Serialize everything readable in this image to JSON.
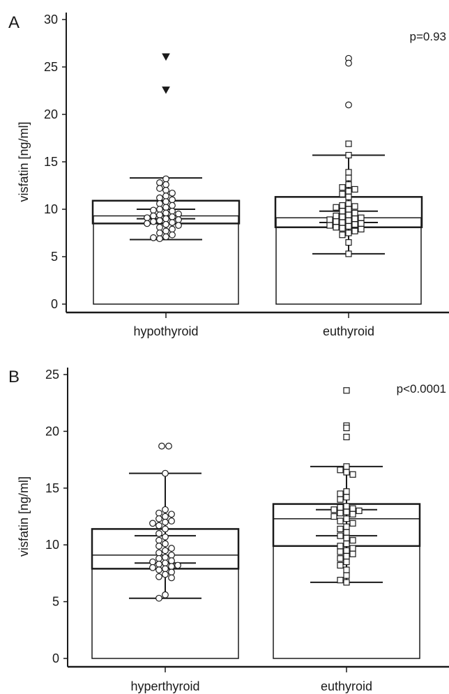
{
  "chart_data": [
    {
      "type": "bar",
      "panel_label": "A",
      "ylabel": "visfatin [ng/ml]",
      "ylim": [
        0,
        30
      ],
      "yticks": [
        "0",
        "5",
        "10",
        "15",
        "20",
        "25",
        "30"
      ],
      "categories": [
        "hypothyroid",
        "euthyroid"
      ],
      "annotation": "p=0.93",
      "bar_values": [
        9.3,
        9.1
      ],
      "box": [
        {
          "q1": 8.5,
          "q3": 10.9
        },
        {
          "q1": 8.1,
          "q3": 11.3
        }
      ],
      "inner_bars": [
        {
          "low": 9.0,
          "high": 10.0
        },
        {
          "low": 8.6,
          "high": 9.8
        }
      ],
      "whiskers": [
        {
          "low": 6.8,
          "high": 13.3
        },
        {
          "low": 5.3,
          "high": 15.7
        }
      ],
      "markers": [
        "circle",
        "square"
      ],
      "outliers": [
        {
          "marker": "down-triangle",
          "values": [
            26.1,
            22.6
          ]
        },
        {
          "marker": "circle",
          "values": [
            25.9,
            25.4,
            21.0
          ]
        }
      ],
      "points": [
        [
          13.2,
          12.8,
          12.6,
          12.2,
          12.0,
          11.7,
          11.4,
          11.2,
          11.0,
          10.8,
          10.6,
          10.4,
          10.2,
          10.0,
          9.9,
          9.8,
          9.6,
          9.5,
          9.4,
          9.3,
          9.2,
          9.1,
          9.0,
          8.9,
          8.8,
          8.7,
          8.6,
          8.5,
          8.4,
          8.3,
          8.1,
          7.9,
          7.7,
          7.5,
          7.3,
          7.1,
          7.0,
          6.9
        ],
        [
          16.9,
          15.7,
          13.9,
          13.3,
          12.6,
          12.3,
          12.1,
          11.9,
          11.6,
          11.3,
          10.6,
          10.4,
          10.3,
          10.2,
          10.0,
          9.8,
          9.6,
          9.4,
          9.3,
          9.2,
          9.1,
          9.0,
          8.9,
          8.8,
          8.7,
          8.6,
          8.5,
          8.4,
          8.3,
          8.2,
          8.1,
          8.0,
          7.9,
          7.7,
          7.5,
          7.3,
          6.5,
          5.3
        ]
      ]
    },
    {
      "type": "bar",
      "panel_label": "B",
      "ylabel": "visfatin [ng/ml]",
      "ylim": [
        0,
        25
      ],
      "yticks": [
        "0",
        "5",
        "10",
        "15",
        "20",
        "25"
      ],
      "categories": [
        "hyperthyroid",
        "euthyroid"
      ],
      "annotation": "p<0.0001",
      "bar_values": [
        9.1,
        12.3
      ],
      "box": [
        {
          "q1": 7.9,
          "q3": 11.4
        },
        {
          "q1": 9.9,
          "q3": 13.6
        }
      ],
      "inner_bars": [
        {
          "low": 8.4,
          "high": 10.8
        },
        {
          "low": 10.8,
          "high": 13.1
        }
      ],
      "whiskers": [
        {
          "low": 5.3,
          "high": 16.3
        },
        {
          "low": 6.7,
          "high": 16.9
        }
      ],
      "markers": [
        "circle",
        "square"
      ],
      "outliers": [
        {
          "marker": "circle",
          "values": [
            18.7,
            18.7
          ]
        },
        {
          "marker": "square",
          "values": [
            23.6,
            20.5,
            20.3,
            19.5
          ]
        }
      ],
      "points": [
        [
          16.3,
          13.1,
          12.8,
          12.7,
          12.5,
          12.3,
          12.1,
          12.0,
          11.9,
          11.7,
          11.4,
          11.0,
          10.7,
          10.4,
          10.1,
          9.9,
          9.7,
          9.5,
          9.3,
          9.1,
          8.9,
          8.8,
          8.6,
          8.5,
          8.4,
          8.3,
          8.2,
          8.1,
          8.0,
          7.9,
          7.8,
          7.6,
          7.4,
          7.2,
          7.1,
          5.6,
          5.3
        ],
        [
          16.9,
          16.6,
          16.4,
          16.2,
          14.7,
          14.5,
          14.2,
          14.0,
          13.4,
          13.3,
          13.2,
          13.1,
          13.0,
          12.9,
          12.8,
          12.7,
          12.5,
          12.3,
          12.1,
          11.9,
          11.6,
          11.4,
          11.1,
          10.8,
          10.6,
          10.4,
          10.1,
          9.9,
          9.7,
          9.5,
          9.4,
          9.2,
          9.0,
          8.8,
          8.5,
          8.2,
          7.8,
          7.3,
          6.9,
          6.7
        ]
      ]
    }
  ]
}
